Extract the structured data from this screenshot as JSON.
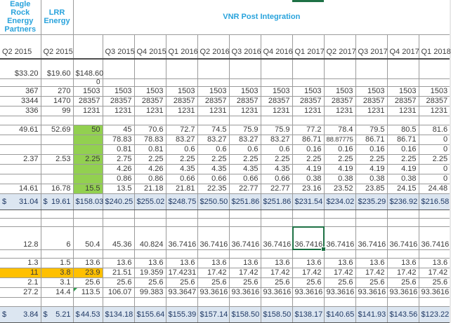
{
  "colors": {
    "header_text": "#29A3DC",
    "green_fill": "#92D050",
    "orange_fill": "#FFC000",
    "total_row_fill": "#DCE6F1",
    "total_row_text": "#1F3864",
    "selection_green": "#1E7145",
    "body_text": "#3A3A3A"
  },
  "sheet": {
    "currency_symbol": "$",
    "group_headers": [
      {
        "label": "Eagle Rock\nEnergy\nPartners",
        "cols": 1
      },
      {
        "label": "LRR\nEnergy",
        "cols": 1
      },
      {
        "label": "VNR Post Integration",
        "cols": 12
      }
    ],
    "column_headers": [
      "Q2 2015",
      "Q2 2015",
      "",
      "Q3 2015",
      "Q4 2015",
      "Q1 2016",
      "Q2 2016",
      "Q3 2016",
      "Q4 2016",
      "Q1 2017",
      "Q2 2017",
      "Q3 2017",
      "Q4 2017",
      "Q1 2018"
    ],
    "rows": [
      {
        "kind": "values",
        "size": "xtall",
        "cells": [
          "$33.20",
          "$19.60",
          "$148.60",
          "",
          "",
          "",
          "",
          "",
          "",
          "",
          "",
          "",
          "",
          ""
        ]
      },
      {
        "kind": "values",
        "size": "xthin",
        "cells": [
          "",
          "",
          "0",
          "",
          "",
          "",
          "",
          "",
          "",
          "",
          "",
          "",
          "",
          ""
        ]
      },
      {
        "kind": "values",
        "cells": [
          "367",
          "270",
          "1503",
          "1503",
          "1503",
          "1503",
          "1503",
          "1503",
          "1503",
          "1503",
          "1503",
          "1503",
          "1503",
          "1503"
        ]
      },
      {
        "kind": "values",
        "cells": [
          "3344",
          "1470",
          "28357",
          "28357",
          "28357",
          "28357",
          "28357",
          "28357",
          "28357",
          "28357",
          "28357",
          "28357",
          "28357",
          "28357"
        ]
      },
      {
        "kind": "values",
        "cells": [
          "336",
          "99",
          "1231",
          "1231",
          "1231",
          "1231",
          "1231",
          "1231",
          "1231",
          "1231",
          "1231",
          "1231",
          "1231",
          "1231"
        ]
      },
      {
        "kind": "blank",
        "cells": [
          "",
          "",
          "",
          "",
          "",
          "",
          "",
          "",
          "",
          "",
          "",
          "",
          "",
          ""
        ]
      },
      {
        "kind": "values",
        "size": "sect",
        "green_col3": true,
        "cells": [
          "49.61",
          "52.69",
          "50",
          "45",
          "70.6",
          "72.7",
          "74.5",
          "75.9",
          "75.9",
          "77.2",
          "78.4",
          "79.5",
          "80.5",
          "81.6"
        ]
      },
      {
        "kind": "values",
        "size": "sect",
        "green_col3": true,
        "cells": [
          "",
          "",
          "",
          "78.83",
          "78.83",
          "83.27",
          "83.27",
          "83.27",
          "83.27",
          "86.71",
          "88.87775",
          "86.71",
          "86.71",
          "0"
        ]
      },
      {
        "kind": "values",
        "size": "sect",
        "green_col3": true,
        "cells": [
          "",
          "",
          "",
          "0.81",
          "0.81",
          "0.6",
          "0.6",
          "0.6",
          "0.6",
          "0.16",
          "0.16",
          "0.16",
          "0.16",
          "0"
        ]
      },
      {
        "kind": "values",
        "size": "sect",
        "green_col3": true,
        "cells": [
          "2.37",
          "2.53",
          "2.25",
          "2.75",
          "2.25",
          "2.25",
          "2.25",
          "2.25",
          "2.25",
          "2.25",
          "2.25",
          "2.25",
          "2.25",
          "2.25"
        ]
      },
      {
        "kind": "values",
        "size": "sect",
        "green_col3": true,
        "cells": [
          "",
          "",
          "",
          "4.26",
          "4.26",
          "4.35",
          "4.35",
          "4.35",
          "4.35",
          "4.19",
          "4.19",
          "4.19",
          "4.19",
          "0"
        ]
      },
      {
        "kind": "values",
        "size": "sect",
        "green_col3": true,
        "cells": [
          "",
          "",
          "",
          "0.86",
          "0.86",
          "0.66",
          "0.66",
          "0.66",
          "0.66",
          "0.38",
          "0.38",
          "0.38",
          "0.38",
          "0"
        ]
      },
      {
        "kind": "values",
        "size": "sect",
        "green_col3": true,
        "cells": [
          "14.61",
          "16.78",
          "15.5",
          "13.5",
          "21.18",
          "21.81",
          "22.35",
          "22.77",
          "22.77",
          "23.16",
          "23.52",
          "23.85",
          "24.15",
          "24.48"
        ]
      },
      {
        "kind": "total",
        "cells": [
          "31.04",
          "19.61",
          "158.03",
          "240.25",
          "255.02",
          "248.75",
          "250.50",
          "251.86",
          "251.86",
          "231.54",
          "234.02",
          "235.29",
          "236.92",
          "216.58"
        ]
      },
      {
        "kind": "blank",
        "size": "thin",
        "cells": [
          "",
          "",
          "",
          "",
          "",
          "",
          "",
          "",
          "",
          "",
          "",
          "",
          "",
          ""
        ]
      },
      {
        "kind": "blank",
        "size": "thin",
        "cells": [
          "",
          "",
          "",
          "",
          "",
          "",
          "",
          "",
          "",
          "",
          "",
          "",
          "",
          ""
        ]
      },
      {
        "kind": "values",
        "size": "tall",
        "selected_col": 9,
        "cells": [
          "12.8",
          "6",
          "50.4",
          "45.36",
          "40.824",
          "36.7416",
          "36.7416",
          "36.7416",
          "36.7416",
          "36.7416",
          "36.7416",
          "36.7416",
          "36.7416",
          "36.7416"
        ]
      },
      {
        "kind": "blank",
        "size": "thin",
        "cells": [
          "",
          "",
          "",
          "",
          "",
          "",
          "",
          "",
          "",
          "",
          "",
          "",
          "",
          ""
        ]
      },
      {
        "kind": "values",
        "cells": [
          "1.3",
          "1.5",
          "13.6",
          "13.6",
          "13.6",
          "13.6",
          "13.6",
          "13.6",
          "13.6",
          "13.6",
          "13.6",
          "13.6",
          "13.6",
          "13.6"
        ]
      },
      {
        "kind": "values",
        "orange_cols": [
          0,
          1,
          2
        ],
        "cells": [
          "11",
          "3.8",
          "23.9",
          "21.51",
          "19.359",
          "17.4231",
          "17.42",
          "17.42",
          "17.42",
          "17.42",
          "17.42",
          "17.42",
          "17.42",
          "17.42"
        ]
      },
      {
        "kind": "values",
        "cells": [
          "2.1",
          "3.1",
          "25.6",
          "25.6",
          "25.6",
          "25.6",
          "25.6",
          "25.6",
          "25.6",
          "25.6",
          "25.6",
          "25.6",
          "25.6",
          "25.6"
        ]
      },
      {
        "kind": "values",
        "flag_col": 2,
        "cells": [
          "27.2",
          "14.4",
          "113.5",
          "106.07",
          "99.383",
          "93.3647",
          "93.3616",
          "93.3616",
          "93.3616",
          "93.3616",
          "93.3616",
          "93.3616",
          "93.3616",
          "93.3616"
        ]
      },
      {
        "kind": "blank",
        "cells": [
          "",
          "",
          "",
          "",
          "",
          "",
          "",
          "",
          "",
          "",
          "",
          "",
          "",
          ""
        ]
      },
      {
        "kind": "total",
        "cells": [
          "3.84",
          "5.21",
          "44.53",
          "134.18",
          "155.64",
          "155.39",
          "157.14",
          "158.50",
          "158.50",
          "138.17",
          "140.65",
          "141.93",
          "143.56",
          "123.22"
        ]
      }
    ]
  }
}
